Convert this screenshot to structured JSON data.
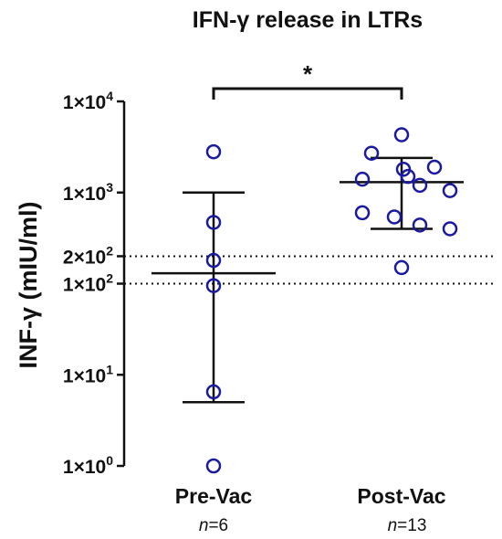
{
  "chart_data": {
    "type": "scatter",
    "title": "IFN-γ release in LTRs",
    "ylabel": "INF-γ (mIU/ml)",
    "yscale": "log",
    "ylim": [
      1,
      10000
    ],
    "yticks": [
      {
        "value": 1,
        "base": "1×10",
        "exp": "0"
      },
      {
        "value": 10,
        "base": "1×10",
        "exp": "1"
      },
      {
        "value": 100,
        "base": "1×10",
        "exp": "2"
      },
      {
        "value": 200,
        "base": "2×10",
        "exp": "2"
      },
      {
        "value": 1000,
        "base": "1×10",
        "exp": "3"
      },
      {
        "value": 10000,
        "base": "1×10",
        "exp": "4"
      }
    ],
    "reference_lines": [
      200,
      100
    ],
    "marker_color": "#1a1aa0",
    "groups": [
      {
        "label": "Pre-Vac",
        "n_label": "n",
        "n_value": "=6",
        "values": [
          2800,
          470,
          180,
          95,
          6.5,
          1.0
        ],
        "center": 130,
        "error_low": 5.0,
        "error_high": 1000
      },
      {
        "label": "Post-Vac",
        "n_label": "n",
        "n_value": "=13",
        "values": [
          4300,
          2700,
          1800,
          1900,
          1500,
          1400,
          1200,
          1050,
          600,
          540,
          440,
          400,
          150
        ],
        "center": 1300,
        "error_low": 400,
        "error_high": 2400
      }
    ],
    "significance": {
      "label": "*"
    }
  }
}
